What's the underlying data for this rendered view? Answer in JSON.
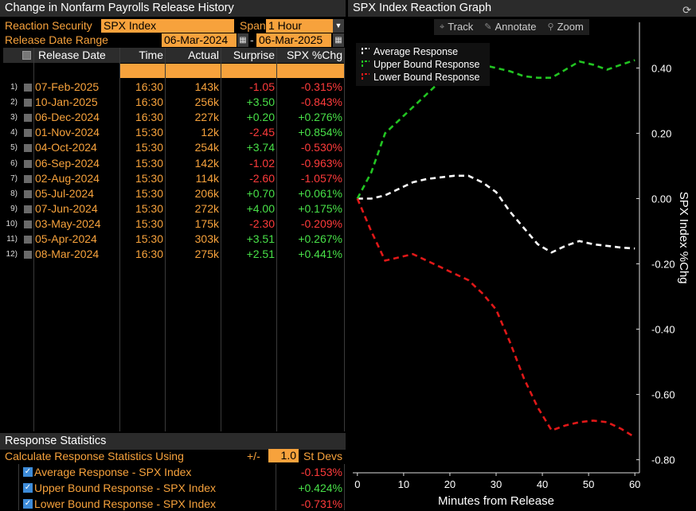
{
  "left": {
    "title": "Change in Nonfarm Payrolls Release History",
    "reaction_label": "Reaction Security",
    "reaction_value": "SPX Index",
    "span_label": "Span",
    "span_value": "1 Hour",
    "range_label": "Release Date Range",
    "range_start": "06-Mar-2024",
    "range_end": "06-Mar-2025",
    "range_dash": "-",
    "columns": [
      "Release Date",
      "Time",
      "Actual",
      "Surprise",
      "SPX %Chg"
    ],
    "rows": [
      {
        "idx": "1)",
        "date": "07-Feb-2025",
        "time": "16:30",
        "actual": "143k",
        "surprise": "-1.05",
        "chg": "-0.315%"
      },
      {
        "idx": "2)",
        "date": "10-Jan-2025",
        "time": "16:30",
        "actual": "256k",
        "surprise": "+3.50",
        "chg": "-0.843%"
      },
      {
        "idx": "3)",
        "date": "06-Dec-2024",
        "time": "16:30",
        "actual": "227k",
        "surprise": "+0.20",
        "chg": "+0.276%"
      },
      {
        "idx": "4)",
        "date": "01-Nov-2024",
        "time": "15:30",
        "actual": "12k",
        "surprise": "-2.45",
        "chg": "+0.854%"
      },
      {
        "idx": "5)",
        "date": "04-Oct-2024",
        "time": "15:30",
        "actual": "254k",
        "surprise": "+3.74",
        "chg": "-0.530%"
      },
      {
        "idx": "6)",
        "date": "06-Sep-2024",
        "time": "15:30",
        "actual": "142k",
        "surprise": "-1.02",
        "chg": "-0.963%"
      },
      {
        "idx": "7)",
        "date": "02-Aug-2024",
        "time": "15:30",
        "actual": "114k",
        "surprise": "-2.60",
        "chg": "-1.057%"
      },
      {
        "idx": "8)",
        "date": "05-Jul-2024",
        "time": "15:30",
        "actual": "206k",
        "surprise": "+0.70",
        "chg": "+0.061%"
      },
      {
        "idx": "9)",
        "date": "07-Jun-2024",
        "time": "15:30",
        "actual": "272k",
        "surprise": "+4.00",
        "chg": "+0.175%"
      },
      {
        "idx": "10)",
        "date": "03-May-2024",
        "time": "15:30",
        "actual": "175k",
        "surprise": "-2.30",
        "chg": "-0.209%"
      },
      {
        "idx": "11)",
        "date": "05-Apr-2024",
        "time": "15:30",
        "actual": "303k",
        "surprise": "+3.51",
        "chg": "+0.267%"
      },
      {
        "idx": "12)",
        "date": "08-Mar-2024",
        "time": "16:30",
        "actual": "275k",
        "surprise": "+2.51",
        "chg": "+0.441%"
      }
    ],
    "stats": {
      "title": "Response Statistics",
      "calc_label": "Calculate Response Statistics Using",
      "pm": "+/-",
      "stdev_value": "1.0",
      "stdev_label": "St Devs",
      "items": [
        {
          "label": "Average Response - SPX Index",
          "value": "-0.153%"
        },
        {
          "label": "Upper Bound Response - SPX Index",
          "value": "+0.424%"
        },
        {
          "label": "Lower Bound Response - SPX Index",
          "value": "-0.731%"
        }
      ]
    }
  },
  "right": {
    "title": "SPX Index Reaction Graph",
    "toolbar": {
      "track": "Track",
      "annotate": "Annotate",
      "zoom": "Zoom"
    }
  },
  "colors": {
    "accent": "#f7a23c",
    "positive": "#48e048",
    "negative": "#ff3b3b",
    "upper": "#22c422",
    "lower": "#e01818",
    "average": "#ffffff"
  },
  "chart_data": {
    "type": "line",
    "xlabel": "Minutes from Release",
    "ylabel": "SPX Index %Chg",
    "xlim": [
      -1,
      61
    ],
    "ylim": [
      -0.84,
      0.54
    ],
    "xticks": [
      0,
      10,
      20,
      30,
      40,
      50,
      60
    ],
    "yticks": [
      0.4,
      0.2,
      0.0,
      -0.2,
      -0.4,
      -0.6,
      -0.8
    ],
    "ytick_labels": [
      "0.40",
      "0.20",
      "0.00",
      "-0.20",
      "-0.40",
      "-0.60",
      "-0.80"
    ],
    "legend_position": "top-left",
    "series": [
      {
        "name": "Average Response",
        "color": "#ffffff",
        "x": [
          0,
          3,
          6,
          9,
          12,
          15,
          18,
          21,
          24,
          27,
          30,
          33,
          36,
          39,
          42,
          45,
          48,
          51,
          54,
          57,
          60
        ],
        "y": [
          0.0,
          0.0,
          0.01,
          0.03,
          0.05,
          0.06,
          0.065,
          0.07,
          0.07,
          0.05,
          0.02,
          -0.04,
          -0.09,
          -0.14,
          -0.165,
          -0.145,
          -0.13,
          -0.14,
          -0.145,
          -0.15,
          -0.153
        ]
      },
      {
        "name": "Upper Bound Response",
        "color": "#22c422",
        "x": [
          0,
          3,
          6,
          9,
          12,
          15,
          18,
          21,
          24,
          27,
          30,
          33,
          36,
          39,
          42,
          45,
          48,
          51,
          54,
          57,
          60
        ],
        "y": [
          0.0,
          0.08,
          0.2,
          0.24,
          0.28,
          0.32,
          0.36,
          0.39,
          0.405,
          0.41,
          0.4,
          0.39,
          0.375,
          0.37,
          0.37,
          0.395,
          0.42,
          0.41,
          0.395,
          0.41,
          0.424
        ]
      },
      {
        "name": "Lower Bound Response",
        "color": "#e01818",
        "x": [
          0,
          3,
          6,
          9,
          12,
          15,
          18,
          21,
          24,
          27,
          30,
          33,
          36,
          39,
          42,
          45,
          48,
          51,
          54,
          57,
          60
        ],
        "y": [
          0.0,
          -0.1,
          -0.19,
          -0.18,
          -0.17,
          -0.19,
          -0.21,
          -0.23,
          -0.25,
          -0.29,
          -0.34,
          -0.44,
          -0.55,
          -0.64,
          -0.71,
          -0.695,
          -0.685,
          -0.68,
          -0.685,
          -0.705,
          -0.731
        ]
      }
    ]
  }
}
